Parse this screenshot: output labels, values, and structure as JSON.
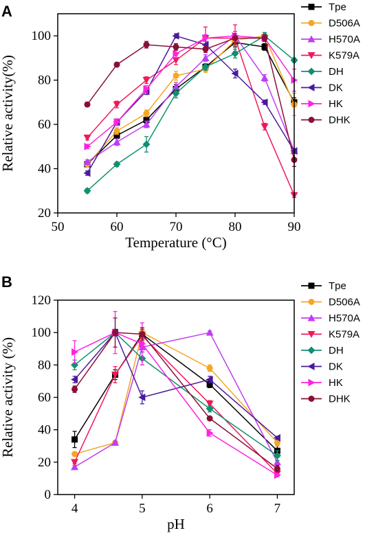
{
  "chart_data": [
    {
      "panel": "A",
      "type": "line",
      "xlabel": "Temperature (°C)",
      "ylabel": "Relative activity(%)",
      "xlim": [
        50,
        90
      ],
      "ylim": [
        20,
        110
      ],
      "xticks": [
        50,
        60,
        70,
        80,
        90
      ],
      "yticks": [
        20,
        40,
        60,
        80,
        100
      ],
      "x": [
        55,
        60,
        65,
        70,
        75,
        80,
        85,
        90
      ],
      "legend_position": "right",
      "series": [
        {
          "name": "Tpe",
          "color": "#000000",
          "marker": "square",
          "values": [
            42,
            55,
            62,
            76,
            86,
            97,
            95,
            70
          ],
          "errors": [
            1,
            1.5,
            1.5,
            2,
            1.5,
            2,
            1.5,
            2
          ]
        },
        {
          "name": "D506A",
          "color": "#f5a623",
          "marker": "circle",
          "values": [
            42,
            57,
            65,
            82,
            85,
            98,
            100,
            69
          ],
          "errors": [
            1,
            1.5,
            1.5,
            2,
            1.5,
            2,
            1.5,
            5
          ]
        },
        {
          "name": "H570A",
          "color": "#c03cf5",
          "marker": "triangle-up",
          "values": [
            43,
            52,
            60,
            77,
            90,
            100,
            81,
            48
          ],
          "errors": [
            1,
            1.5,
            1.5,
            2,
            1.5,
            2,
            1.5,
            1
          ]
        },
        {
          "name": "K579A",
          "color": "#f0185a",
          "marker": "triangle-down",
          "values": [
            54,
            69,
            80,
            89,
            99,
            99,
            59,
            28
          ],
          "errors": [
            1,
            1.5,
            1.5,
            2,
            5,
            6,
            1.5,
            1
          ]
        },
        {
          "name": "DH",
          "color": "#0f9070",
          "marker": "diamond",
          "values": [
            30,
            42,
            51,
            74,
            86,
            92,
            100,
            89
          ],
          "errors": [
            1,
            1,
            3.5,
            2,
            1.5,
            2,
            1.5,
            1
          ]
        },
        {
          "name": "DK",
          "color": "#4a1a9e",
          "marker": "triangle-left",
          "values": [
            38,
            61,
            75,
            100,
            96,
            83,
            70,
            48
          ],
          "errors": [
            1,
            1.5,
            1.5,
            1,
            1.5,
            2,
            1,
            1
          ]
        },
        {
          "name": "HK",
          "color": "#ff22e0",
          "marker": "triangle-right",
          "values": [
            50,
            61,
            76,
            92,
            99,
            100,
            99,
            80
          ],
          "errors": [
            1,
            1.5,
            1.5,
            2,
            1.5,
            2,
            1.5,
            5
          ]
        },
        {
          "name": "DHK",
          "color": "#8a0f35",
          "marker": "circle",
          "values": [
            69,
            87,
            96,
            95,
            94,
            99,
            99,
            44
          ],
          "errors": [
            1,
            1,
            1.5,
            1.5,
            1.5,
            2,
            1.5,
            3
          ]
        }
      ]
    },
    {
      "panel": "B",
      "type": "line",
      "xlabel": "pH",
      "ylabel": "Relative activity (%)",
      "xlim": [
        3.75,
        7.25
      ],
      "ylim": [
        0,
        120
      ],
      "xticks": [
        4,
        5,
        6,
        7
      ],
      "yticks": [
        0,
        20,
        40,
        60,
        80,
        100,
        120
      ],
      "x": [
        4,
        4.6,
        5,
        6,
        7
      ],
      "legend_position": "right",
      "series": [
        {
          "name": "Tpe",
          "color": "#000000",
          "marker": "square",
          "values": [
            34,
            74,
            99,
            68,
            27
          ],
          "errors": [
            5,
            3,
            3,
            2,
            3
          ]
        },
        {
          "name": "D506A",
          "color": "#f5a623",
          "marker": "circle",
          "values": [
            25,
            32,
            100,
            78,
            32
          ],
          "errors": [
            1,
            1,
            3,
            2,
            2
          ]
        },
        {
          "name": "H570A",
          "color": "#c03cf5",
          "marker": "triangle-up",
          "values": [
            17,
            32,
            91,
            100,
            20
          ],
          "errors": [
            1,
            1,
            3,
            1,
            1
          ]
        },
        {
          "name": "K579A",
          "color": "#f0185a",
          "marker": "triangle-down",
          "values": [
            20,
            74,
            98,
            56,
            13
          ],
          "errors": [
            1,
            5,
            4,
            2,
            1
          ]
        },
        {
          "name": "DH",
          "color": "#0f9070",
          "marker": "diamond",
          "values": [
            80,
            100,
            84,
            53,
            24
          ],
          "errors": [
            3,
            2,
            4,
            2,
            3
          ]
        },
        {
          "name": "DK",
          "color": "#4a1a9e",
          "marker": "triangle-left",
          "values": [
            71,
            100,
            60,
            71,
            35
          ],
          "errors": [
            2,
            2,
            4,
            2,
            1
          ]
        },
        {
          "name": "HK",
          "color": "#ff22e0",
          "marker": "triangle-right",
          "values": [
            88,
            100,
            93,
            38,
            12
          ],
          "errors": [
            7,
            13,
            13,
            2,
            1
          ]
        },
        {
          "name": "DHK",
          "color": "#8a0f35",
          "marker": "circle",
          "values": [
            65,
            100,
            99,
            47,
            16
          ],
          "errors": [
            2,
            9,
            4,
            1,
            2
          ]
        }
      ]
    }
  ]
}
